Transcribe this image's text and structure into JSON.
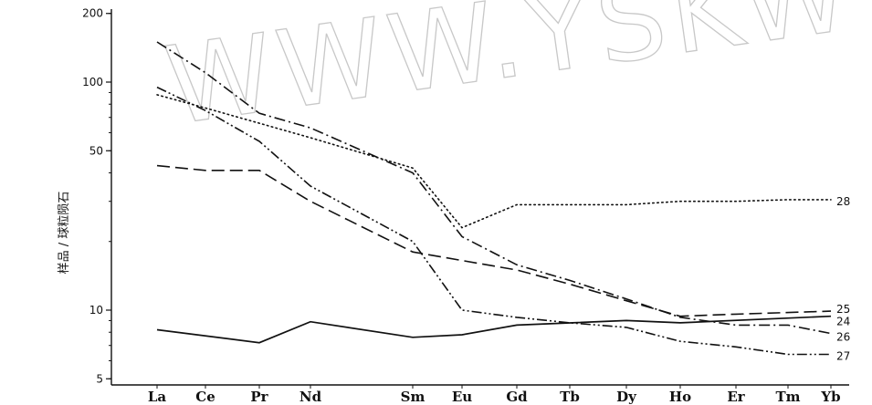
{
  "chart_data": {
    "type": "line",
    "title": "",
    "xlabel": "",
    "ylabel": "样品 / 球粒陨石",
    "y_scale": "log",
    "ylim": [
      5,
      200
    ],
    "y_ticks": [
      5,
      10,
      50,
      100,
      200
    ],
    "categories": [
      "La",
      "Ce",
      "Pr",
      "Nd",
      "Sm",
      "Eu",
      "Gd",
      "Tb",
      "Dy",
      "Ho",
      "Er",
      "Tm",
      "Yb"
    ],
    "grid": false,
    "watermark": "WWW.YSKW",
    "series": [
      {
        "name": "24",
        "line_style": "solid",
        "points": [
          {
            "x": "La",
            "y": 8.2
          },
          {
            "x": "Pr",
            "y": 7.2
          },
          {
            "x": "Nd",
            "y": 8.9
          },
          {
            "x": "Sm",
            "y": 7.6
          },
          {
            "x": "Eu",
            "y": 7.8
          },
          {
            "x": "Gd",
            "y": 8.6
          },
          {
            "x": "Dy",
            "y": 9.0
          },
          {
            "x": "Ho",
            "y": 8.8
          },
          {
            "x": "Yb",
            "y": 9.4
          }
        ]
      },
      {
        "name": "25",
        "line_style": "dashed",
        "points": [
          {
            "x": "La",
            "y": 43
          },
          {
            "x": "Ce",
            "y": 41
          },
          {
            "x": "Pr",
            "y": 41
          },
          {
            "x": "Nd",
            "y": 30
          },
          {
            "x": "Sm",
            "y": 18
          },
          {
            "x": "Eu",
            "y": 16.5
          },
          {
            "x": "Gd",
            "y": 15
          },
          {
            "x": "Tb",
            "y": 13
          },
          {
            "x": "Dy",
            "y": 11
          },
          {
            "x": "Ho",
            "y": 9.4
          },
          {
            "x": "Er",
            "y": 9.6
          },
          {
            "x": "Yb",
            "y": 9.9
          }
        ]
      },
      {
        "name": "26",
        "line_style": "dash-dot",
        "points": [
          {
            "x": "La",
            "y": 150
          },
          {
            "x": "Ce",
            "y": 110
          },
          {
            "x": "Pr",
            "y": 73
          },
          {
            "x": "Nd",
            "y": 63
          },
          {
            "x": "Sm",
            "y": 40
          },
          {
            "x": "Eu",
            "y": 21
          },
          {
            "x": "Gd",
            "y": 15.8
          },
          {
            "x": "Tb",
            "y": 13.5
          },
          {
            "x": "Dy",
            "y": 11.2
          },
          {
            "x": "Ho",
            "y": 9.3
          },
          {
            "x": "Er",
            "y": 8.6
          },
          {
            "x": "Tm",
            "y": 8.6
          },
          {
            "x": "Yb",
            "y": 7.9
          }
        ]
      },
      {
        "name": "27",
        "line_style": "dash-dot-dot",
        "points": [
          {
            "x": "La",
            "y": 95
          },
          {
            "x": "Ce",
            "y": 75
          },
          {
            "x": "Pr",
            "y": 55
          },
          {
            "x": "Nd",
            "y": 35
          },
          {
            "x": "Sm",
            "y": 20
          },
          {
            "x": "Eu",
            "y": 10
          },
          {
            "x": "Gd",
            "y": 9.3
          },
          {
            "x": "Tb",
            "y": 8.8
          },
          {
            "x": "Dy",
            "y": 8.4
          },
          {
            "x": "Ho",
            "y": 7.3
          },
          {
            "x": "Er",
            "y": 6.9
          },
          {
            "x": "Tm",
            "y": 6.4
          },
          {
            "x": "Yb",
            "y": 6.4
          }
        ]
      },
      {
        "name": "28",
        "line_style": "dotted",
        "points": [
          {
            "x": "La",
            "y": 88
          },
          {
            "x": "Ce",
            "y": 77
          },
          {
            "x": "Pr",
            "y": 66
          },
          {
            "x": "Nd",
            "y": 57
          },
          {
            "x": "Sm",
            "y": 42
          },
          {
            "x": "Eu",
            "y": 23
          },
          {
            "x": "Gd",
            "y": 29
          },
          {
            "x": "Tb",
            "y": 29
          },
          {
            "x": "Dy",
            "y": 29
          },
          {
            "x": "Ho",
            "y": 30
          },
          {
            "x": "Er",
            "y": 30
          },
          {
            "x": "Tm",
            "y": 30.5
          },
          {
            "x": "Yb",
            "y": 30.5
          }
        ]
      }
    ]
  }
}
